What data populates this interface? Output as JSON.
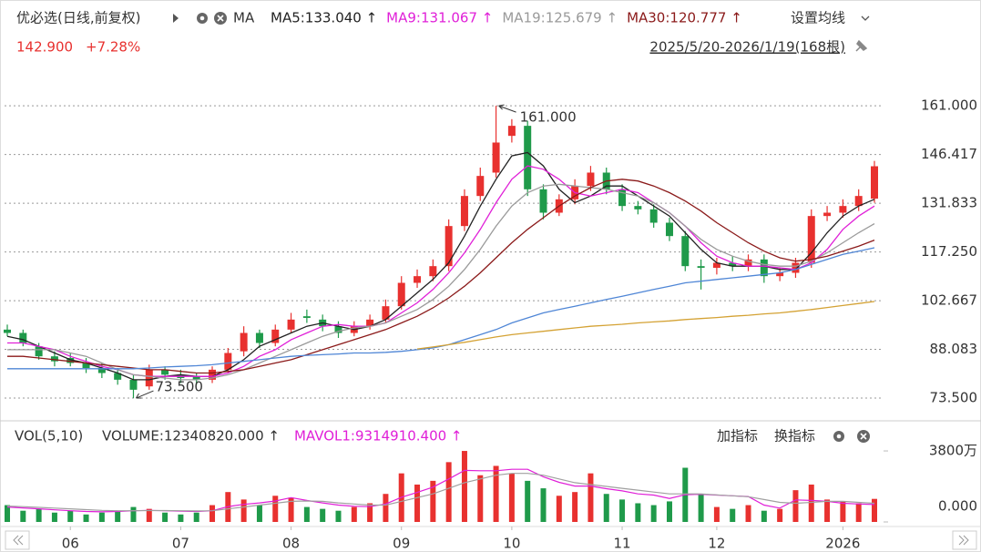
{
  "chart_data": {
    "type": "candlestick",
    "title": "优必选(日线,前复权)",
    "indicator": "MA",
    "settings_label": "设置均线",
    "price": "142.900",
    "change": "+7.28%",
    "range_label": "2025/5/20-2026/1/19(168根)",
    "up_color": "#e8312f",
    "down_color": "#1f9a4a",
    "ylim": [
      68.6,
      165.4
    ],
    "yticks": [
      {
        "value": 161,
        "label": "161.000"
      },
      {
        "value": 146.417,
        "label": "146.417"
      },
      {
        "value": 131.833,
        "label": "131.833"
      },
      {
        "value": 117.25,
        "label": "117.250"
      },
      {
        "value": 102.667,
        "label": "102.667"
      },
      {
        "value": 88.083,
        "label": "88.083"
      },
      {
        "value": 73.5,
        "label": "73.500"
      }
    ],
    "grid": true,
    "xticks": [
      {
        "value": 4,
        "label": "06"
      },
      {
        "value": 11,
        "label": "07"
      },
      {
        "value": 18,
        "label": "08"
      },
      {
        "value": 25,
        "label": "09"
      },
      {
        "value": 32,
        "label": "10"
      },
      {
        "value": 39,
        "label": "11"
      },
      {
        "value": 45,
        "label": "12"
      },
      {
        "value": 53,
        "label": "2026"
      }
    ],
    "high_label": "161.000",
    "low_label": "73.500",
    "open": [
      94,
      93,
      89,
      86,
      85.5,
      84,
      82.5,
      81,
      79,
      77,
      82,
      80.5,
      80,
      79,
      82,
      87.5,
      93,
      90,
      94,
      98,
      97,
      95,
      93,
      95,
      97,
      101,
      108,
      110,
      113,
      125,
      134,
      141,
      152,
      155,
      136,
      129,
      133,
      137,
      141,
      136,
      131,
      130,
      126,
      122,
      113,
      112.5,
      114,
      113,
      115,
      110,
      111,
      114,
      128,
      129,
      131,
      133.2
    ],
    "high": [
      95.5,
      94,
      90,
      87.5,
      87,
      85.5,
      84,
      82.5,
      80.5,
      83.5,
      83,
      82,
      81,
      83,
      88.5,
      95,
      94,
      95.5,
      99,
      100,
      98.5,
      96.5,
      96.5,
      98.5,
      103,
      110,
      112,
      115,
      127,
      136,
      142.5,
      161,
      157,
      156.5,
      137.5,
      134.5,
      139,
      143,
      142.5,
      137.5,
      132.5,
      131.5,
      127.5,
      123.5,
      115,
      115.5,
      116,
      116.5,
      116.5,
      112.5,
      115.5,
      130,
      131,
      133,
      136,
      144.5
    ],
    "low": [
      92,
      89,
      85,
      83,
      83,
      81,
      79.5,
      77.5,
      73.5,
      76,
      79,
      78,
      77.5,
      78,
      81,
      86,
      88.5,
      89,
      93,
      96,
      93.5,
      91.5,
      92,
      94,
      96,
      100,
      106.5,
      108.5,
      111.5,
      123.5,
      132.5,
      139.5,
      150,
      134,
      127,
      128,
      131.5,
      135.5,
      134.5,
      129.5,
      128.5,
      124.5,
      120.5,
      111.5,
      106,
      110.5,
      111.5,
      111.5,
      108,
      108.5,
      109.5,
      112.5,
      126.5,
      127.5,
      129.5,
      132
    ],
    "close": [
      93,
      90,
      86,
      84.5,
      84,
      82.5,
      81,
      79,
      76,
      82,
      80.5,
      79.5,
      79,
      82,
      87,
      93,
      90,
      94,
      97,
      97.5,
      95,
      93,
      95,
      97,
      101,
      108,
      110,
      113,
      125,
      134,
      140,
      150,
      155,
      136,
      129,
      133,
      137,
      141,
      136,
      131,
      130,
      126,
      122,
      113,
      112.5,
      114,
      113,
      115,
      110,
      111,
      114,
      128,
      129,
      131,
      134,
      142.9
    ],
    "ma_lines": [
      {
        "label": "MA5:133.040 ↑",
        "color": "#222222",
        "values": [
          92,
          91,
          89,
          87,
          85,
          84,
          82.5,
          81,
          79,
          79,
          80,
          80.5,
          80,
          80,
          82,
          85,
          89,
          91,
          93,
          95,
          96,
          95,
          94,
          95,
          97,
          101,
          105,
          109,
          114,
          122,
          131,
          139,
          146,
          147,
          143,
          136,
          132,
          134,
          137,
          137,
          134,
          131,
          128,
          123,
          118,
          114,
          113,
          113,
          113,
          112,
          112,
          117,
          123,
          128,
          131,
          133
        ]
      },
      {
        "label": "MA9:131.067 ↑",
        "color": "#e020d8",
        "values": [
          90,
          90,
          89,
          88,
          86,
          84.5,
          83,
          82,
          80.5,
          80,
          80,
          80,
          80,
          80,
          81,
          83,
          86,
          88,
          91,
          93,
          95,
          95.5,
          95,
          95,
          96,
          99,
          102,
          106,
          111,
          117,
          124,
          132,
          139,
          143,
          142,
          139,
          135,
          134,
          135,
          136,
          135,
          132,
          129,
          125,
          120,
          116,
          114,
          113,
          113,
          112.5,
          112,
          114,
          118,
          124,
          128,
          131
        ]
      },
      {
        "label": "MA19:125.679 ↑",
        "color": "#9a9a9a",
        "values": [
          88,
          88,
          88,
          88,
          87,
          86,
          84,
          82,
          80.5,
          80,
          79.5,
          79,
          79,
          79.5,
          80.5,
          82,
          84,
          86,
          88,
          90,
          92,
          93.5,
          94.5,
          95,
          96,
          98,
          100,
          103,
          107,
          112,
          118,
          125,
          131,
          135,
          137,
          137.5,
          137,
          136.5,
          136,
          135,
          134,
          132,
          129,
          125,
          121,
          118,
          116,
          114.5,
          113.5,
          113,
          113,
          114.5,
          117,
          120,
          123,
          125.7
        ]
      },
      {
        "label": "MA30:120.777 ↑",
        "color": "#8b1a1a",
        "values": [
          86,
          86,
          85.5,
          85,
          84.5,
          84,
          83.5,
          83,
          82.5,
          82,
          82,
          81.5,
          81,
          81,
          81.5,
          82,
          83,
          84,
          85,
          86.5,
          88,
          89.5,
          91,
          92.5,
          94,
          96,
          98,
          100.5,
          103.5,
          107,
          111,
          115.5,
          120,
          124,
          127.5,
          131,
          134,
          136.5,
          138.5,
          139,
          138.5,
          137,
          135,
          132.5,
          129.5,
          126,
          123,
          120,
          117.5,
          115.5,
          114.5,
          115,
          116,
          117.5,
          119,
          120.8
        ]
      },
      {
        "color": "#4f86d6",
        "values": [
          82.3,
          82.3,
          82.3,
          82.3,
          82.3,
          82.3,
          82.3,
          82.3,
          82.3,
          82.5,
          82.8,
          83,
          83.2,
          83.5,
          84,
          84.5,
          85,
          85.5,
          86,
          86.3,
          86.5,
          86.7,
          87,
          87,
          87.2,
          87.5,
          88,
          88.5,
          89.5,
          91,
          92.5,
          94,
          96,
          97.5,
          99,
          100,
          101,
          102,
          103,
          104,
          105,
          106,
          107,
          108,
          108.5,
          109,
          109.5,
          110,
          110.5,
          111,
          112,
          113.5,
          115,
          116.5,
          117.5,
          118.5
        ]
      },
      {
        "color": "#d4a234",
        "values": [
          null,
          null,
          null,
          null,
          null,
          null,
          null,
          null,
          null,
          null,
          null,
          null,
          null,
          null,
          null,
          null,
          null,
          null,
          null,
          null,
          null,
          null,
          null,
          null,
          null,
          null,
          88.2,
          88.8,
          89.5,
          90.2,
          91,
          91.8,
          92.5,
          93,
          93.5,
          94,
          94.5,
          95,
          95.3,
          95.6,
          96,
          96.3,
          96.6,
          97,
          97.3,
          97.6,
          98,
          98.3,
          98.7,
          99,
          99.5,
          100,
          100.6,
          101.2,
          101.8,
          102.4
        ]
      }
    ],
    "volume": {
      "title": "VOL(5,10)",
      "legend": [
        {
          "label": "VOLUME:12340820.000 ↑",
          "color": "#333333"
        },
        {
          "label": "MAVOL1:9314910.400 ↑",
          "color": "#e020d8"
        }
      ],
      "buttons": [
        "加指标",
        "换指标"
      ],
      "ylim": [
        0,
        4290
      ],
      "yticks": [
        {
          "value": 3800,
          "label": "3800万"
        },
        {
          "value": 0,
          "label": "0.000"
        }
      ],
      "values": [
        900,
        600,
        700,
        500,
        600,
        400,
        500,
        600,
        800,
        700,
        500,
        400,
        500,
        900,
        1600,
        1200,
        900,
        1400,
        1300,
        800,
        700,
        600,
        800,
        1000,
        1500,
        2600,
        2000,
        2200,
        3200,
        3800,
        2500,
        3000,
        2600,
        2200,
        1800,
        1400,
        1600,
        2600,
        1500,
        1200,
        1000,
        900,
        1100,
        2900,
        1500,
        800,
        700,
        900,
        600,
        700,
        1700,
        2000,
        1200,
        1100,
        1000,
        1234.082
      ],
      "lines": [
        {
          "color": "#e020d8",
          "values": [
            800,
            750,
            700,
            650,
            600,
            560,
            540,
            560,
            600,
            620,
            600,
            580,
            560,
            600,
            820,
            940,
            1020,
            1120,
            1300,
            1150,
            1020,
            900,
            840,
            820,
            960,
            1320,
            1580,
            1860,
            2300,
            2760,
            2740,
            2740,
            2820,
            2820,
            2420,
            2120,
            1920,
            1920,
            1780,
            1660,
            1500,
            1440,
            1260,
            1460,
            1480,
            1440,
            1400,
            1360,
            900,
            740,
            1180,
            1150,
            1100,
            1000,
            960,
            931.491
          ]
        },
        {
          "color": "#a0a0a0",
          "values": [
            850,
            820,
            780,
            740,
            700,
            660,
            620,
            600,
            600,
            610,
            610,
            600,
            590,
            600,
            700,
            800,
            900,
            1000,
            1100,
            1120,
            1100,
            1020,
            960,
            900,
            900,
            1100,
            1300,
            1500,
            1800,
            2100,
            2300,
            2500,
            2600,
            2600,
            2500,
            2300,
            2100,
            2000,
            1900,
            1800,
            1700,
            1600,
            1500,
            1500,
            1500,
            1450,
            1400,
            1350,
            1200,
            1050,
            1000,
            1050,
            1100,
            1100,
            1050,
            1000
          ]
        }
      ]
    }
  }
}
